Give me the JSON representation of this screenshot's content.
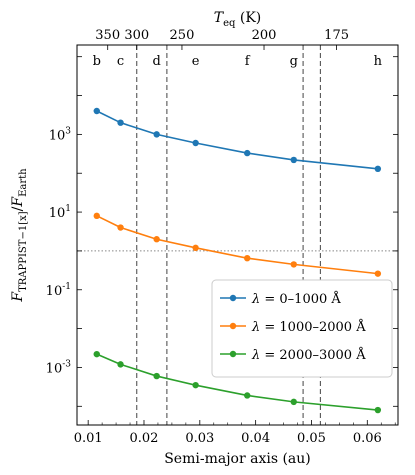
{
  "chart_data": {
    "type": "line",
    "xlabel": "Semi-major axis (au)",
    "ylabel": "F_TRAPPIST-1[x] / F_Earth",
    "top_xlabel": "T_eq (K)",
    "xlim": [
      0.008,
      0.0655
    ],
    "ylim": [
      3.3e-05,
      200000
    ],
    "yscale": "log",
    "x_ticks": [
      0.01,
      0.02,
      0.03,
      0.04,
      0.05,
      0.06
    ],
    "x_tick_labels": [
      "0.01",
      "0.02",
      "0.03",
      "0.04",
      "0.05",
      "0.06"
    ],
    "y_ticks": [
      0.001,
      0.1,
      10,
      1000
    ],
    "y_tick_labels": [
      "10^-3",
      "10^-1",
      "10^1",
      "10^3"
    ],
    "top_ticks": [
      {
        "label": "350",
        "x": 0.0135
      },
      {
        "label": "300",
        "x": 0.0187
      },
      {
        "label": "250",
        "x": 0.0268
      },
      {
        "label": "200",
        "x": 0.0415
      },
      {
        "label": "175",
        "x": 0.0545
      }
    ],
    "planets": [
      {
        "name": "b",
        "x": 0.01154
      },
      {
        "name": "c",
        "x": 0.0158
      },
      {
        "name": "d",
        "x": 0.02227
      },
      {
        "name": "e",
        "x": 0.02925
      },
      {
        "name": "f",
        "x": 0.03849
      },
      {
        "name": "g",
        "x": 0.04683
      },
      {
        "name": "h",
        "x": 0.06189
      }
    ],
    "hz_lines": [
      0.0187,
      0.0241,
      0.0485,
      0.0516
    ],
    "reference_line": 1,
    "series": [
      {
        "name": "λ = 0–1000 Å",
        "color": "#1f77b4",
        "x": [
          0.01154,
          0.0158,
          0.02227,
          0.02925,
          0.03849,
          0.04683,
          0.06189
        ],
        "y": [
          4000,
          2000,
          1000,
          600,
          330,
          220,
          130
        ]
      },
      {
        "name": "λ = 1000–2000 Å",
        "color": "#ff7f0e",
        "x": [
          0.01154,
          0.0158,
          0.02227,
          0.02925,
          0.03849,
          0.04683,
          0.06189
        ],
        "y": [
          8,
          4,
          2,
          1.2,
          0.65,
          0.45,
          0.26
        ]
      },
      {
        "name": "λ = 2000–3000 Å",
        "color": "#2ca02c",
        "x": [
          0.01154,
          0.0158,
          0.02227,
          0.02925,
          0.03849,
          0.04683,
          0.06189
        ],
        "y": [
          0.0022,
          0.0012,
          0.0006,
          0.00035,
          0.00019,
          0.00013,
          8e-05
        ]
      }
    ],
    "legend_position": "center-right"
  }
}
